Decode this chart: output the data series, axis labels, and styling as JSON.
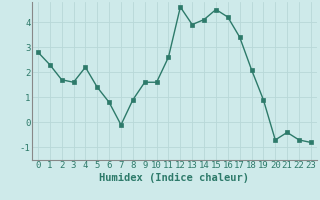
{
  "x": [
    0,
    1,
    2,
    3,
    4,
    5,
    6,
    7,
    8,
    9,
    10,
    11,
    12,
    13,
    14,
    15,
    16,
    17,
    18,
    19,
    20,
    21,
    22,
    23
  ],
  "y": [
    2.8,
    2.3,
    1.7,
    1.6,
    2.2,
    1.4,
    0.8,
    -0.1,
    0.9,
    1.6,
    1.6,
    2.6,
    4.6,
    3.9,
    4.1,
    4.5,
    4.2,
    3.4,
    2.1,
    0.9,
    -0.7,
    -0.4,
    -0.7,
    -0.8
  ],
  "line_color": "#2d7a6a",
  "marker": "s",
  "marker_size": 2.5,
  "bg_color": "#ceeaea",
  "grid_color": "#b8d8d8",
  "xlabel": "Humidex (Indice chaleur)",
  "ylim": [
    -1.5,
    4.8
  ],
  "xlim": [
    -0.5,
    23.5
  ],
  "yticks": [
    -1,
    0,
    1,
    2,
    3,
    4
  ],
  "xticks": [
    0,
    1,
    2,
    3,
    4,
    5,
    6,
    7,
    8,
    9,
    10,
    11,
    12,
    13,
    14,
    15,
    16,
    17,
    18,
    19,
    20,
    21,
    22,
    23
  ],
  "tick_label_size": 6.5,
  "xlabel_size": 7.5,
  "spine_color": "#888888",
  "line_width": 1.0
}
